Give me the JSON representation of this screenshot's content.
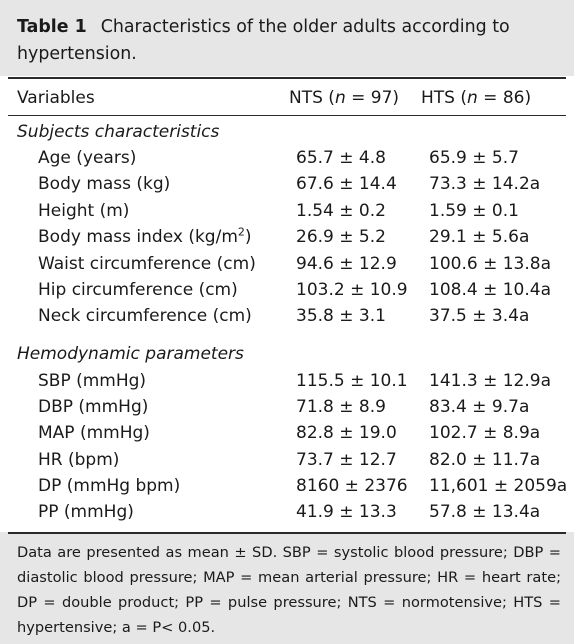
{
  "table": {
    "number": "Table 1",
    "caption": "Characteristics of the older adults according to hypertension.",
    "headers": {
      "variables": "Variables",
      "nts": "NTS (n = 97)",
      "hts": "HTS (n = 86)"
    },
    "sections": [
      {
        "title": "Subjects characteristics",
        "rows": [
          {
            "variable": "Age (years)",
            "nts": "65.7 ± 4.8",
            "hts": "65.9 ± 5.7"
          },
          {
            "variable": "Body mass (kg)",
            "nts": "67.6 ± 14.4",
            "hts": "73.3 ± 14.2a"
          },
          {
            "variable": "Height (m)",
            "nts": "1.54 ± 0.2",
            "hts": "1.59 ± 0.1"
          },
          {
            "variable": "Body mass index (kg/m",
            "variable_sup": "2",
            "variable_tail": ")",
            "nts": "26.9 ± 5.2",
            "hts": "29.1 ± 5.6a"
          },
          {
            "variable": "Waist circumference (cm)",
            "nts": "94.6 ± 12.9",
            "hts": "100.6 ± 13.8a"
          },
          {
            "variable": "Hip circumference (cm)",
            "nts": "103.2 ± 10.9",
            "hts": "108.4 ± 10.4a"
          },
          {
            "variable": "Neck circumference (cm)",
            "nts": "35.8 ± 3.1",
            "hts": "37.5 ± 3.4a"
          }
        ]
      },
      {
        "title": "Hemodynamic parameters",
        "rows": [
          {
            "variable": "SBP (mmHg)",
            "nts": "115.5 ± 10.1",
            "hts": "141.3 ± 12.9a"
          },
          {
            "variable": "DBP (mmHg)",
            "nts": "71.8 ± 8.9",
            "hts": "83.4 ± 9.7a"
          },
          {
            "variable": "MAP (mmHg)",
            "nts": "82.8 ± 19.0",
            "hts": "102.7 ± 8.9a"
          },
          {
            "variable": "HR (bpm)",
            "nts": "73.7 ± 12.7",
            "hts": "82.0 ± 11.7a"
          },
          {
            "variable": "DP (mmHg bpm)",
            "nts": "8160 ± 2376",
            "hts": "11,601 ± 2059a"
          },
          {
            "variable": "PP (mmHg)",
            "nts": "41.9 ± 13.3",
            "hts": "57.8 ± 13.4a"
          }
        ]
      }
    ],
    "footnote": "Data are presented as mean ± SD. SBP = systolic blood pressure; DBP = diastolic blood pressure; MAP = mean arterial pressure; HR = heart rate; DP = double product; PP = pulse pressure; NTS = normotensive; HTS = hypertensive; a = P< 0.05."
  }
}
